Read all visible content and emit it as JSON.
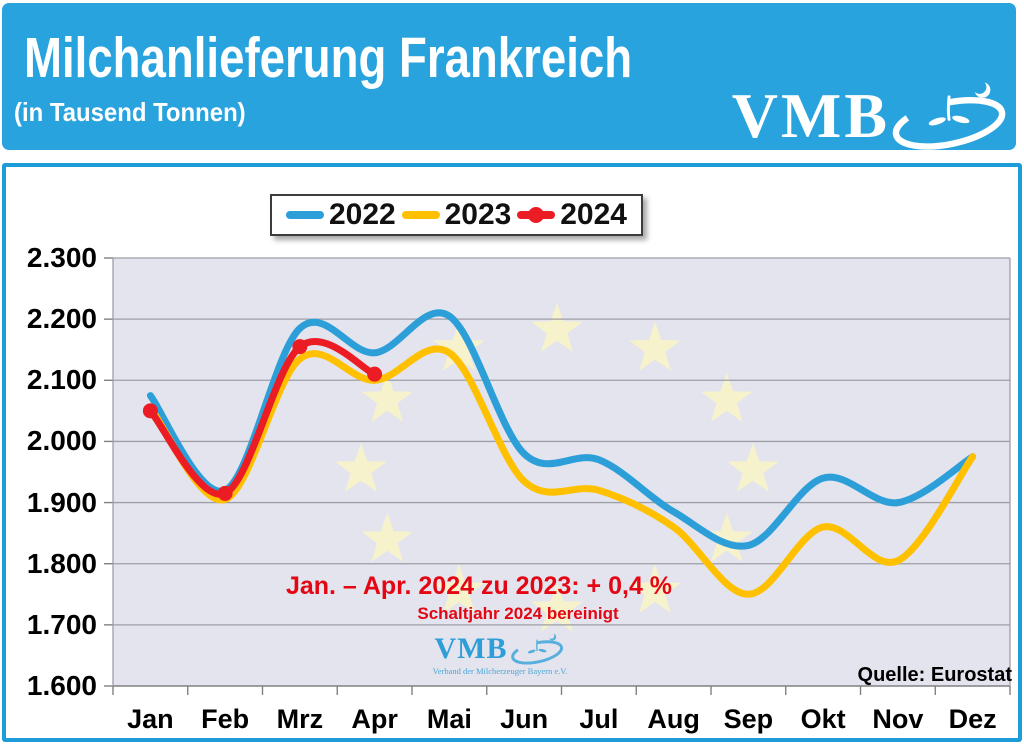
{
  "header": {
    "title": "Milchanlieferung Frankreich",
    "subtitle": "(in Tausend Tonnen)",
    "logo_text": "VMB"
  },
  "legend": {
    "items": [
      {
        "label": "2022",
        "color": "#2C9FD9",
        "marker": "line"
      },
      {
        "label": "2023",
        "color": "#FFC000",
        "marker": "line"
      },
      {
        "label": "2024",
        "color": "#EC1C24",
        "marker": "line-dot"
      }
    ]
  },
  "chart_data": {
    "type": "line",
    "title": "Milchanlieferung Frankreich",
    "subtitle": "(in Tausend Tonnen)",
    "unit": "Tausend Tonnen",
    "categories": [
      "Jan",
      "Feb",
      "Mrz",
      "Apr",
      "Mai",
      "Jun",
      "Jul",
      "Aug",
      "Sep",
      "Okt",
      "Nov",
      "Dez"
    ],
    "ylim": [
      1600,
      2300
    ],
    "ytick_step": 100,
    "ytick_labels": [
      "2.300",
      "2.200",
      "2.100",
      "2.000",
      "1.900",
      "1.800",
      "1.700",
      "1.600"
    ],
    "grid": "horizontal",
    "legend_position": "top",
    "background": "eu-stars-watermark",
    "series": [
      {
        "name": "2022",
        "color": "#2C9FD9",
        "marker": false,
        "values": [
          2075,
          1920,
          2185,
          2145,
          2205,
          1980,
          1970,
          1885,
          1830,
          1940,
          1900,
          1975
        ]
      },
      {
        "name": "2023",
        "color": "#FFC000",
        "marker": false,
        "values": [
          2055,
          1905,
          2135,
          2100,
          2145,
          1935,
          1920,
          1860,
          1750,
          1860,
          1805,
          1975
        ]
      },
      {
        "name": "2024",
        "color": "#EC1C24",
        "marker": true,
        "values": [
          2050,
          1915,
          2155,
          2110
        ]
      }
    ]
  },
  "annotation": {
    "line1": "Jan. – Apr. 2024 zu 2023:  + 0,4 %",
    "line2": "Schaltjahr 2024 bereinigt"
  },
  "watermark": {
    "logo_text": "VMB",
    "subtext": "Verband der Milcherzeuger Bayern e.V."
  },
  "source_label": "Quelle: Eurostat",
  "colors": {
    "header_bg": "#29A3DD",
    "panel_border": "#1E9CD8",
    "plot_bg": "#E4E4EE",
    "gridline": "#9E9EA6",
    "axis_line": "#808080",
    "star": "#F6F2CB",
    "annotation_red": "#E30613"
  }
}
